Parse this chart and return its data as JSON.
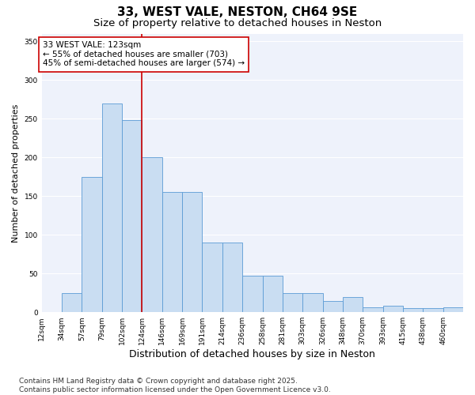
{
  "title1": "33, WEST VALE, NESTON, CH64 9SE",
  "title2": "Size of property relative to detached houses in Neston",
  "xlabel": "Distribution of detached houses by size in Neston",
  "ylabel": "Number of detached properties",
  "categories": [
    "12sqm",
    "34sqm",
    "57sqm",
    "79sqm",
    "102sqm",
    "124sqm",
    "146sqm",
    "169sqm",
    "191sqm",
    "214sqm",
    "236sqm",
    "258sqm",
    "281sqm",
    "303sqm",
    "326sqm",
    "348sqm",
    "370sqm",
    "393sqm",
    "415sqm",
    "438sqm",
    "460sqm"
  ],
  "bar_heights": [
    0,
    25,
    175,
    270,
    248,
    200,
    155,
    155,
    90,
    90,
    47,
    47,
    25,
    25,
    14,
    20,
    6,
    8,
    5,
    5,
    6
  ],
  "bar_color": "#c9ddf2",
  "bar_edge_color": "#5b9bd5",
  "vline_color": "#cc0000",
  "annotation_title": "33 WEST VALE: 123sqm",
  "annotation_line2": "← 55% of detached houses are smaller (703)",
  "annotation_line3": "45% of semi-detached houses are larger (574) →",
  "annotation_box_color": "#cc0000",
  "ylim": [
    0,
    360
  ],
  "yticks": [
    0,
    50,
    100,
    150,
    200,
    250,
    300,
    350
  ],
  "grid_color": "#ffffff",
  "background_color": "#eef2fb",
  "footer1": "Contains HM Land Registry data © Crown copyright and database right 2025.",
  "footer2": "Contains public sector information licensed under the Open Government Licence v3.0.",
  "title1_fontsize": 11,
  "title2_fontsize": 9.5,
  "annotation_fontsize": 7.5,
  "xlabel_fontsize": 9,
  "ylabel_fontsize": 8,
  "tick_fontsize": 6.5,
  "footer_fontsize": 6.5
}
